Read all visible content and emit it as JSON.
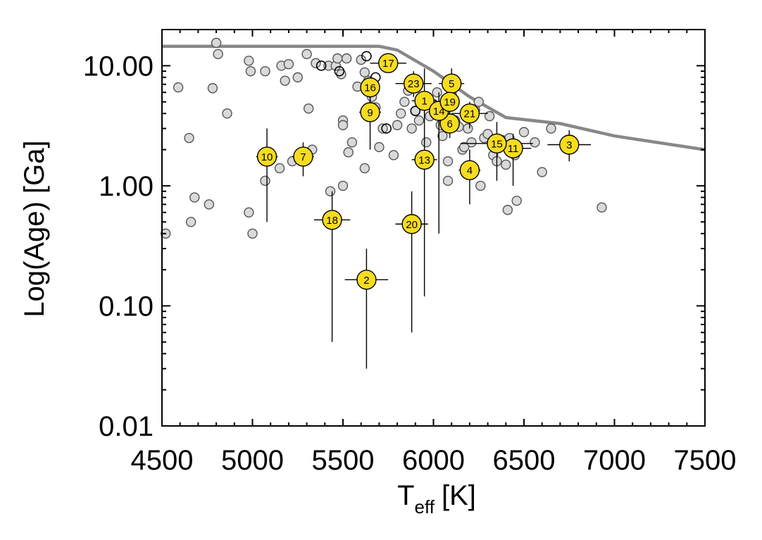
{
  "chart_data": {
    "type": "scatter",
    "xlabel": "T",
    "xlabel_subscript": "eff",
    "xlabel_unit": "[K]",
    "ylabel": "Log(Age) [Ga]",
    "xlim": [
      4500,
      7500
    ],
    "ylim": [
      0.01,
      20
    ],
    "yscale": "log",
    "x_ticks": [
      4500,
      5000,
      5500,
      6000,
      6500,
      7000,
      7500
    ],
    "x_tick_labels": [
      "4500",
      "5000",
      "5500",
      "6000",
      "6500",
      "7000",
      "7500"
    ],
    "y_ticks": [
      0.01,
      0.1,
      1,
      10
    ],
    "y_tick_labels": [
      "0.01",
      "0.10",
      "1.00",
      "10.00"
    ],
    "limit_line": {
      "name": "upper age limit",
      "color": "#888888",
      "points": [
        [
          4500,
          14.5
        ],
        [
          5700,
          14.5
        ],
        [
          5800,
          13.5
        ],
        [
          6000,
          9.0
        ],
        [
          6200,
          5.5
        ],
        [
          6400,
          3.7
        ],
        [
          6700,
          3.3
        ],
        [
          7000,
          2.6
        ],
        [
          7500,
          2.0
        ]
      ]
    },
    "gray_points": [
      [
        4520,
        0.4
      ],
      [
        4590,
        6.6
      ],
      [
        4650,
        2.5
      ],
      [
        4660,
        0.5
      ],
      [
        4680,
        0.8
      ],
      [
        4760,
        0.7
      ],
      [
        4780,
        6.5
      ],
      [
        4800,
        15.5
      ],
      [
        4810,
        12.5
      ],
      [
        4860,
        4.0
      ],
      [
        4980,
        11.0
      ],
      [
        4990,
        9.0
      ],
      [
        4980,
        0.6
      ],
      [
        5000,
        0.4
      ],
      [
        5070,
        9.0
      ],
      [
        5070,
        1.1
      ],
      [
        5150,
        1.4
      ],
      [
        5160,
        10.0
      ],
      [
        5180,
        7.5
      ],
      [
        5200,
        10.3
      ],
      [
        5220,
        1.6
      ],
      [
        5250,
        8.0
      ],
      [
        5300,
        12.5
      ],
      [
        5310,
        4.4
      ],
      [
        5330,
        2.0
      ],
      [
        5350,
        10.5
      ],
      [
        5420,
        10.0
      ],
      [
        5430,
        0.9
      ],
      [
        5460,
        10.0
      ],
      [
        5470,
        11.5
      ],
      [
        5490,
        8.5
      ],
      [
        5500,
        3.5
      ],
      [
        5500,
        3.2
      ],
      [
        5500,
        1.0
      ],
      [
        5520,
        11.5
      ],
      [
        5530,
        1.9
      ],
      [
        5550,
        2.3
      ],
      [
        5580,
        6.7
      ],
      [
        5600,
        11.2
      ],
      [
        5620,
        8.8
      ],
      [
        5620,
        1.4
      ],
      [
        5640,
        7.5
      ],
      [
        5660,
        5.5
      ],
      [
        5680,
        4.5
      ],
      [
        5700,
        2.1
      ],
      [
        5720,
        3.0
      ],
      [
        5780,
        1.8
      ],
      [
        5800,
        3.2
      ],
      [
        5820,
        4.0
      ],
      [
        5840,
        5.0
      ],
      [
        5860,
        6.2
      ],
      [
        5880,
        3.0
      ],
      [
        5900,
        4.2
      ],
      [
        5920,
        3.5
      ],
      [
        5960,
        2.3
      ],
      [
        5980,
        3.8
      ],
      [
        6000,
        4.8
      ],
      [
        6010,
        4.3
      ],
      [
        6020,
        6.0
      ],
      [
        6040,
        3.2
      ],
      [
        6050,
        2.6
      ],
      [
        6060,
        3.9
      ],
      [
        6070,
        4.6
      ],
      [
        6080,
        1.6
      ],
      [
        6080,
        1.1
      ],
      [
        6100,
        5.8
      ],
      [
        6120,
        3.5
      ],
      [
        6140,
        3.1
      ],
      [
        6160,
        2.0
      ],
      [
        6170,
        2.1
      ],
      [
        6190,
        3.0
      ],
      [
        6210,
        2.3
      ],
      [
        6230,
        4.3
      ],
      [
        6250,
        5.0
      ],
      [
        6260,
        1.0
      ],
      [
        6280,
        2.5
      ],
      [
        6300,
        2.7
      ],
      [
        6310,
        3.8
      ],
      [
        6330,
        1.8
      ],
      [
        6350,
        1.6
      ],
      [
        6380,
        2.4
      ],
      [
        6400,
        1.5
      ],
      [
        6410,
        0.63
      ],
      [
        6420,
        2.5
      ],
      [
        6450,
        1.8
      ],
      [
        6460,
        0.75
      ],
      [
        6500,
        2.8
      ],
      [
        6560,
        2.3
      ],
      [
        6600,
        1.3
      ],
      [
        6650,
        3.0
      ],
      [
        6930,
        0.66
      ]
    ],
    "open_points": [
      [
        5380,
        10.0
      ],
      [
        5480,
        9.0
      ],
      [
        5630,
        12.0
      ],
      [
        5680,
        8.0
      ],
      [
        5740,
        3.0
      ],
      [
        5900,
        4.2
      ],
      [
        6080,
        4.8
      ]
    ],
    "series": [
      {
        "label": "1",
        "x": 5950,
        "y": 5.1,
        "x_err": [
          70,
          70
        ],
        "y_err": [
          3.8,
          4.5
        ]
      },
      {
        "label": "2",
        "x": 5630,
        "y": 0.165,
        "x_err": [
          120,
          120
        ],
        "y_err": [
          0.03,
          0.3
        ]
      },
      {
        "label": "3",
        "x": 6750,
        "y": 2.2,
        "x_err": [
          120,
          120
        ],
        "y_err": [
          1.6,
          2.9
        ]
      },
      {
        "label": "4",
        "x": 6200,
        "y": 1.35,
        "x_err": [
          60,
          60
        ],
        "y_err": [
          0.7,
          2.0
        ]
      },
      {
        "label": "5",
        "x": 6100,
        "y": 7.1,
        "x_err": [
          70,
          70
        ],
        "y_err": [
          4.5,
          9.5
        ]
      },
      {
        "label": "6",
        "x": 6090,
        "y": 3.3,
        "x_err": [
          50,
          50
        ],
        "y_err": [
          2.5,
          4.0
        ]
      },
      {
        "label": "7",
        "x": 5280,
        "y": 1.75,
        "x_err": [
          60,
          60
        ],
        "y_err": [
          1.2,
          2.3
        ]
      },
      {
        "label": "9",
        "x": 5650,
        "y": 4.1,
        "x_err": [
          60,
          60
        ],
        "y_err": [
          2.0,
          6.5
        ]
      },
      {
        "label": "10",
        "x": 5080,
        "y": 1.75,
        "x_err": [
          60,
          60
        ],
        "y_err": [
          0.5,
          3.0
        ]
      },
      {
        "label": "11",
        "x": 6440,
        "y": 2.05,
        "x_err": [
          100,
          100
        ],
        "y_err": [
          1.0,
          2.7
        ]
      },
      {
        "label": "13",
        "x": 5950,
        "y": 1.65,
        "x_err": [
          70,
          70
        ],
        "y_err": [
          0.12,
          9.5
        ]
      },
      {
        "label": "14",
        "x": 6030,
        "y": 4.2,
        "x_err": [
          50,
          50
        ],
        "y_err": [
          0.4,
          6.0
        ]
      },
      {
        "label": "15",
        "x": 6350,
        "y": 2.25,
        "x_err": [
          200,
          200
        ],
        "y_err": [
          1.1,
          3.4
        ]
      },
      {
        "label": "16",
        "x": 5650,
        "y": 6.6,
        "x_err": [
          50,
          50
        ],
        "y_err": [
          5.0,
          8.0
        ]
      },
      {
        "label": "17",
        "x": 5750,
        "y": 10.5,
        "x_err": [
          100,
          100
        ],
        "y_err": [
          9.0,
          12.0
        ]
      },
      {
        "label": "18",
        "x": 5440,
        "y": 0.52,
        "x_err": [
          100,
          100
        ],
        "y_err": [
          0.05,
          0.9
        ]
      },
      {
        "label": "19",
        "x": 6090,
        "y": 5.0,
        "x_err": [
          50,
          50
        ],
        "y_err": [
          3.5,
          6.0
        ]
      },
      {
        "label": "20",
        "x": 5880,
        "y": 0.48,
        "x_err": [
          90,
          90
        ],
        "y_err": [
          0.06,
          0.9
        ]
      },
      {
        "label": "21",
        "x": 6200,
        "y": 4.0,
        "x_err": [
          100,
          100
        ],
        "y_err": [
          3.0,
          5.0
        ]
      },
      {
        "label": "23",
        "x": 5890,
        "y": 7.1,
        "x_err": [
          100,
          100
        ],
        "y_err": [
          5.5,
          9.0
        ]
      }
    ]
  }
}
